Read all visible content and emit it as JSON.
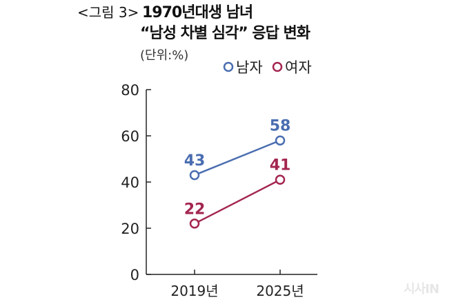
{
  "header": {
    "figure_label": "<그림 3>",
    "title_line1": "1970년대생 남녀",
    "title_line2": "“남성 차별 심각” 응답 변화",
    "unit": "(단위:%)"
  },
  "watermark": "시사IN",
  "chart_data": {
    "type": "line",
    "title": "1970년대생 남녀 “남성 차별 심각” 응답 변화",
    "ylabel": "(단위:%)",
    "categories": [
      "2019년",
      "2025년"
    ],
    "ylim": [
      0,
      80
    ],
    "yticks": [
      0,
      20,
      40,
      60,
      80
    ],
    "legend_position": "top-right",
    "series": [
      {
        "name": "남자",
        "color": "#4a6db0",
        "values": [
          43,
          58
        ]
      },
      {
        "name": "여자",
        "color": "#a3264e",
        "values": [
          22,
          41
        ]
      }
    ]
  }
}
